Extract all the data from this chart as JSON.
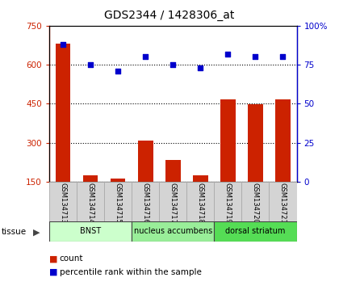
{
  "title": "GDS2344 / 1428306_at",
  "samples": [
    "GSM134713",
    "GSM134714",
    "GSM134715",
    "GSM134716",
    "GSM134717",
    "GSM134718",
    "GSM134719",
    "GSM134720",
    "GSM134721"
  ],
  "counts": [
    680,
    175,
    163,
    308,
    232,
    175,
    468,
    448,
    468
  ],
  "percentiles": [
    88,
    75,
    71,
    80,
    75,
    73,
    82,
    80,
    80
  ],
  "ylim_left": [
    150,
    750
  ],
  "ylim_right": [
    0,
    100
  ],
  "yticks_left": [
    150,
    300,
    450,
    600,
    750
  ],
  "yticks_right": [
    0,
    25,
    50,
    75,
    100
  ],
  "bar_color": "#cc2200",
  "dot_color": "#0000cc",
  "groups": [
    {
      "label": "BNST",
      "start": 0,
      "end": 3,
      "color": "#ccffcc"
    },
    {
      "label": "nucleus accumbens",
      "start": 3,
      "end": 6,
      "color": "#99ee99"
    },
    {
      "label": "dorsal striatum",
      "start": 6,
      "end": 9,
      "color": "#55dd55"
    }
  ],
  "tissue_label": "tissue",
  "legend_count": "count",
  "legend_percentile": "percentile rank within the sample",
  "plot_bg": "#ffffff",
  "grid_color": "#000000",
  "title_color": "#000000",
  "left_axis_color": "#cc2200",
  "right_axis_color": "#0000cc",
  "sample_box_color": "#d4d4d4",
  "sample_box_edge": "#aaaaaa"
}
